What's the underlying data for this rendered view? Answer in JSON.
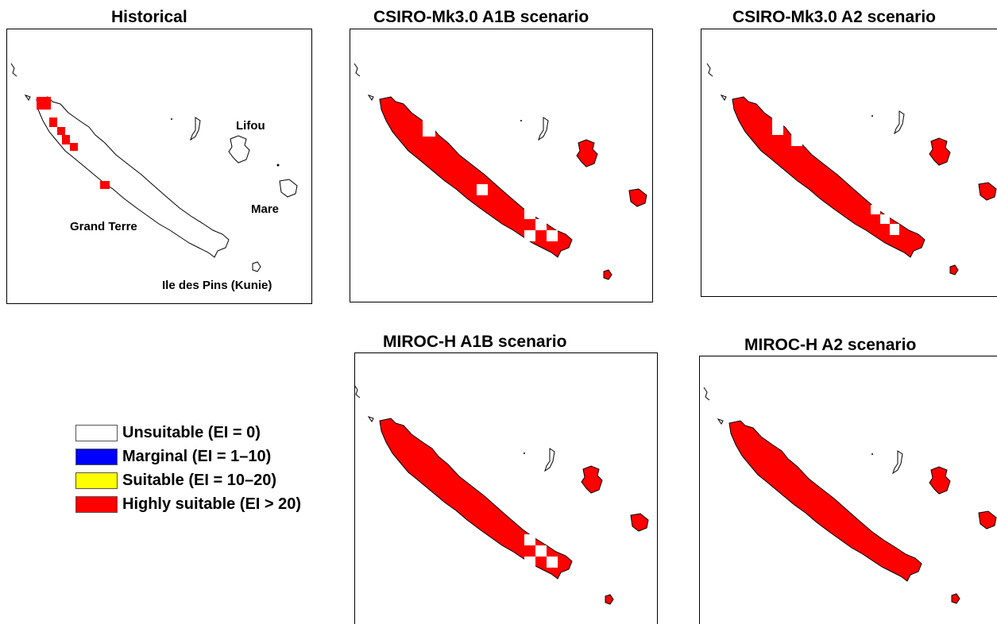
{
  "panels": [
    {
      "id": "historical",
      "title": "Historical"
    },
    {
      "id": "csiro-a1b",
      "title": "CSIRO-Mk3.0 A1B scenario"
    },
    {
      "id": "csiro-a2",
      "title": "CSIRO-Mk3.0 A2 scenario"
    },
    {
      "id": "miroc-a1b",
      "title": "MIROC-H A1B scenario"
    },
    {
      "id": "miroc-a2",
      "title": "MIROC-H A2 scenario"
    }
  ],
  "place_labels": {
    "lifou": "Lifou",
    "mare": "Mare",
    "grand_terre": "Grand Terre",
    "ile_des_pins": "Ile des Pins (Kunie)"
  },
  "legend": {
    "items": [
      {
        "label": "Unsuitable (EI = 0)",
        "color": "#ffffff"
      },
      {
        "label": "Marginal (EI = 1–10)",
        "color": "#0000ff"
      },
      {
        "label": "Suitable (EI = 10–20)",
        "color": "#ffff00"
      },
      {
        "label": "Highly suitable (EI > 20)",
        "color": "#ff0000"
      }
    ]
  },
  "colors": {
    "unsuitable": "#ffffff",
    "highly_suitable": "#ff0000",
    "outline": "#000000"
  }
}
